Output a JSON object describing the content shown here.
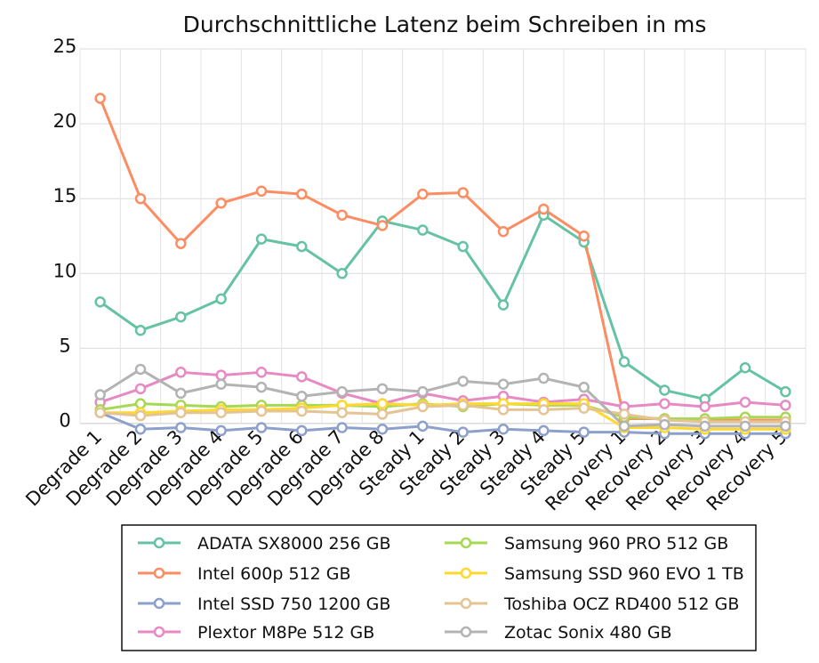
{
  "chart_data": {
    "type": "line",
    "title": "Durchschnittliche Latenz beim Schreiben in ms",
    "xlabel": "",
    "ylabel": "",
    "ylim": [
      0,
      25
    ],
    "yticks": [
      0,
      5,
      10,
      15,
      20,
      25
    ],
    "ytick_labels": [
      "0",
      "5",
      "10",
      "15",
      "20",
      "25"
    ],
    "grid": true,
    "legend_position": "bottom",
    "categories": [
      "Degrade 1",
      "Degrade 2",
      "Degrade 3",
      "Degrade 4",
      "Degrade 5",
      "Degrade 6",
      "Degrade 7",
      "Degrade 8",
      "Steady 1",
      "Steady 2",
      "Steady 3",
      "Steady 4",
      "Steady 5",
      "Recovery 1",
      "Recovery 2",
      "Recovery 3",
      "Recovery 4",
      "Recovery 5"
    ],
    "series": [
      {
        "name": "ADATA SX8000 256 GB",
        "color": "#66c2a5",
        "values": [
          8.1,
          6.2,
          7.1,
          8.3,
          12.3,
          11.8,
          10.0,
          13.5,
          12.9,
          11.8,
          7.9,
          13.9,
          12.1,
          4.1,
          2.2,
          1.6,
          3.7,
          2.1
        ]
      },
      {
        "name": "Intel 600p 512 GB",
        "color": "#fc8d62",
        "values": [
          21.7,
          15.0,
          12.0,
          14.7,
          15.5,
          15.3,
          13.9,
          13.2,
          15.3,
          15.4,
          12.8,
          14.3,
          12.5,
          0.3,
          0.3,
          0.2,
          0.2,
          0.2
        ]
      },
      {
        "name": "Intel SSD 750 1200 GB",
        "color": "#8da0cb",
        "values": [
          0.7,
          -0.4,
          -0.3,
          -0.5,
          -0.3,
          -0.5,
          -0.3,
          -0.4,
          -0.2,
          -0.6,
          -0.4,
          -0.5,
          -0.6,
          -0.6,
          -0.7,
          -0.7,
          -0.7,
          -0.7
        ]
      },
      {
        "name": "Plextor M8Pe 512 GB",
        "color": "#e78ac3",
        "values": [
          1.4,
          2.3,
          3.4,
          3.2,
          3.4,
          3.1,
          2.0,
          1.3,
          2.0,
          1.5,
          1.8,
          1.4,
          1.6,
          1.1,
          1.3,
          1.1,
          1.4,
          1.2
        ]
      },
      {
        "name": "Samsung 960 PRO 512 GB",
        "color": "#a6d854",
        "values": [
          0.9,
          1.3,
          1.2,
          1.1,
          1.2,
          1.2,
          1.2,
          1.1,
          1.3,
          1.1,
          1.3,
          1.2,
          1.2,
          0.4,
          0.3,
          0.3,
          0.4,
          0.4
        ]
      },
      {
        "name": "Samsung SSD 960 EVO 1 TB",
        "color": "#ffd92f",
        "values": [
          0.7,
          0.7,
          0.8,
          0.9,
          0.9,
          1.0,
          1.2,
          1.3,
          1.2,
          1.3,
          1.3,
          1.3,
          1.3,
          -0.3,
          -0.3,
          -0.4,
          -0.4,
          -0.4
        ]
      },
      {
        "name": "Toshiba OCZ RD400 512 GB",
        "color": "#e5c494",
        "values": [
          0.7,
          0.5,
          0.7,
          0.7,
          0.8,
          0.8,
          0.7,
          0.6,
          1.1,
          1.2,
          0.9,
          0.9,
          1.0,
          0.6,
          0.2,
          0.1,
          0.1,
          0.1
        ]
      },
      {
        "name": "Zotac Sonix 480 GB",
        "color": "#b3b3b3",
        "values": [
          1.9,
          3.6,
          2.0,
          2.6,
          2.4,
          1.8,
          2.1,
          2.3,
          2.1,
          2.8,
          2.6,
          3.0,
          2.4,
          -0.2,
          -0.1,
          -0.2,
          -0.2,
          -0.2
        ]
      }
    ]
  }
}
